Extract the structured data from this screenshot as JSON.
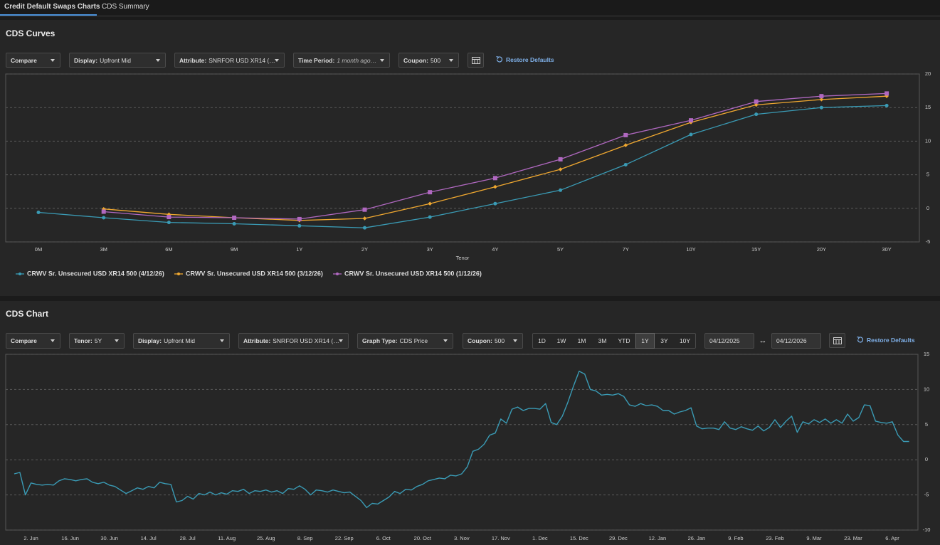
{
  "tabs": [
    "Credit Default Swaps Charts",
    "CDS Summary"
  ],
  "active_tab": 0,
  "controls": {
    "curves": [
      {
        "label": "Compare"
      },
      {
        "label": "Display:",
        "value": "Upfront Mid"
      },
      {
        "label": "Attribute:",
        "value": "SNRFOR USD XR14 (…"
      },
      {
        "label": "Time Period:",
        "value": "1 month ago…"
      },
      {
        "label": "Coupon:",
        "value": "500"
      }
    ],
    "chart": [
      {
        "label": "Compare"
      },
      {
        "label": "Tenor:",
        "value": "5Y"
      },
      {
        "label": "Display:",
        "value": "Upfront Mid"
      },
      {
        "label": "Attribute:",
        "value": "SNRFOR USD XR14 (…"
      },
      {
        "label": "Graph Type:",
        "value": "CDS Price"
      },
      {
        "label": "Coupon:",
        "value": "500"
      }
    ]
  },
  "restore_defaults": "Restore Defaults",
  "periods": [
    "1D",
    "1W",
    "1M",
    "3M",
    "YTD",
    "1Y",
    "3Y",
    "10Y"
  ],
  "active_period": "1Y",
  "date_from": "04/12/2025",
  "date_separator": "↔",
  "date_to": "04/12/2026",
  "chart_data": [
    {
      "type": "line",
      "title": "CDS Curves",
      "x_label": "Tenor",
      "categories": [
        "0M",
        "3M",
        "6M",
        "9M",
        "1Y",
        "2Y",
        "3Y",
        "4Y",
        "5Y",
        "7Y",
        "10Y",
        "15Y",
        "20Y",
        "30Y"
      ],
      "series": [
        {
          "name": "CRWV Sr. Unsecured USD XR14 500 (4/12/26)",
          "color": "#3a9bb5",
          "marker": "circle",
          "values": [
            -0.6,
            -1.4,
            -2.1,
            -2.3,
            -2.6,
            -2.9,
            -1.3,
            0.7,
            2.7,
            6.5,
            11,
            14,
            15,
            15.3
          ]
        },
        {
          "name": "CRWV Sr. Unsecured USD XR14 500 (3/12/26)",
          "color": "#f0a830",
          "marker": "diamond",
          "values": [
            null,
            -0.1,
            -0.9,
            -1.4,
            -1.8,
            -1.5,
            0.7,
            3.2,
            5.8,
            9.4,
            12.8,
            15.4,
            16.2,
            16.7
          ]
        },
        {
          "name": "CRWV Sr. Unsecured USD XR14 500 (1/12/26)",
          "color": "#b068c0",
          "marker": "square",
          "values": [
            null,
            -0.5,
            -1.3,
            -1.4,
            -1.6,
            -0.2,
            2.4,
            4.5,
            7.3,
            10.9,
            13.1,
            15.9,
            16.7,
            17.1
          ]
        }
      ],
      "ylim": [
        -5,
        20
      ],
      "yticks": [
        -5,
        0,
        5,
        10,
        15,
        20
      ],
      "grid": true
    },
    {
      "type": "line",
      "title": "CDS Chart",
      "color": "#3a9bb5",
      "categories": [
        null,
        null,
        null,
        "2. Jun",
        null,
        null,
        null,
        null,
        null,
        null,
        "16. Jun",
        null,
        null,
        null,
        null,
        null,
        null,
        "30. Jun",
        null,
        null,
        null,
        null,
        null,
        null,
        "14. Jul",
        null,
        null,
        null,
        null,
        null,
        null,
        "28. Jul",
        null,
        null,
        null,
        null,
        null,
        null,
        "11. Aug",
        null,
        null,
        null,
        null,
        null,
        null,
        "25. Aug",
        null,
        null,
        null,
        null,
        null,
        null,
        "8. Sep",
        null,
        null,
        null,
        null,
        null,
        null,
        "22. Sep",
        null,
        null,
        null,
        null,
        null,
        null,
        "6. Oct",
        null,
        null,
        null,
        null,
        null,
        null,
        "20. Oct",
        null,
        null,
        null,
        null,
        null,
        null,
        "3. Nov",
        null,
        null,
        null,
        null,
        null,
        null,
        "17. Nov",
        null,
        null,
        null,
        null,
        null,
        null,
        "1. Dec",
        null,
        null,
        null,
        null,
        null,
        null,
        "15. Dec",
        null,
        null,
        null,
        null,
        null,
        null,
        "29. Dec",
        null,
        null,
        null,
        null,
        null,
        null,
        "12. Jan",
        null,
        null,
        null,
        null,
        null,
        null,
        "26. Jan",
        null,
        null,
        null,
        null,
        null,
        null,
        "9. Feb",
        null,
        null,
        null,
        null,
        null,
        null,
        "23. Feb",
        null,
        null,
        null,
        null,
        null,
        null,
        "9. Mar",
        null,
        null,
        null,
        null,
        null,
        null,
        "23. Mar",
        null,
        null,
        null,
        null,
        null,
        null,
        "6. Apr",
        null,
        null,
        null
      ],
      "values": [
        -2,
        -1.8,
        -5,
        -3.3,
        -3.5,
        -3.6,
        -3.5,
        -3.6,
        -3,
        -2.7,
        -2.8,
        -3,
        -2.8,
        -2.7,
        -3.2,
        -3.4,
        -3.2,
        -3.6,
        -3.8,
        -4.3,
        -4.8,
        -4.4,
        -4,
        -4.2,
        -3.8,
        -4,
        -3.2,
        -3.4,
        -3.5,
        -6,
        -5.8,
        -5.2,
        -5.6,
        -4.8,
        -5,
        -4.6,
        -5,
        -4.7,
        -4.9,
        -4.4,
        -4.5,
        -4.2,
        -4.8,
        -4.4,
        -4.5,
        -4.3,
        -4.6,
        -4.4,
        -4.8,
        -4.1,
        -4.2,
        -3.7,
        -4.2,
        -5,
        -4.3,
        -4.4,
        -4.6,
        -4.3,
        -4.5,
        -4.7,
        -4.6,
        -5.2,
        -5.8,
        -6.8,
        -6.2,
        -6.3,
        -5.8,
        -5.3,
        -4.5,
        -4.8,
        -4.2,
        -4.3,
        -3.8,
        -3.5,
        -3,
        -2.8,
        -2.6,
        -2.7,
        -2.2,
        -2.3,
        -2,
        -1,
        1.2,
        1.5,
        2.2,
        3.5,
        3.8,
        5.8,
        5.2,
        7.2,
        7.5,
        7,
        7.3,
        7.3,
        7.2,
        8,
        5.3,
        5,
        6.2,
        8.2,
        10.5,
        12.6,
        12.2,
        10,
        9.8,
        9.2,
        9.3,
        9.2,
        9.4,
        9,
        7.8,
        7.6,
        8,
        7.7,
        7.8,
        7.6,
        7,
        7,
        6.5,
        6.8,
        7,
        7.4,
        4.8,
        4.4,
        4.5,
        4.5,
        4.3,
        5.4,
        4.5,
        4.3,
        4.7,
        4.4,
        4.2,
        4.8,
        4.1,
        4.6,
        5.7,
        4.6,
        5.5,
        6.2,
        3.9,
        5.4,
        5.1,
        5.7,
        5.3,
        5.8,
        5.2,
        5.7,
        5.2,
        6.5,
        5.5,
        6,
        7.8,
        7.7,
        5.5,
        5.3,
        5.2,
        5.4,
        3.5,
        2.6,
        2.6
      ],
      "ylim": [
        -10,
        15
      ],
      "yticks": [
        -10,
        -5,
        0,
        5,
        10,
        15
      ],
      "grid": true
    }
  ]
}
